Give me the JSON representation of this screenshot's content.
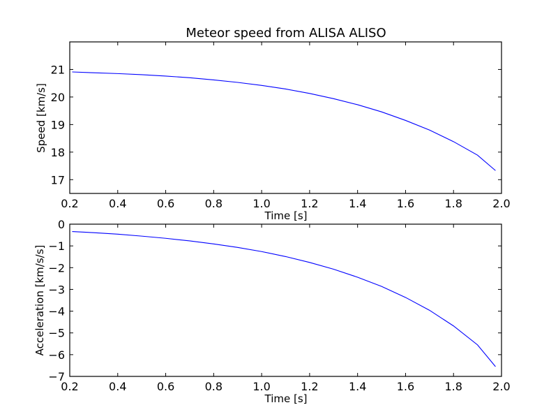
{
  "figure_title": "Meteor speed from  ALISA ALISO",
  "chart_data": [
    {
      "type": "line",
      "title": "Meteor speed from  ALISA ALISO",
      "xlabel": "Time [s]",
      "ylabel": "Speed [km/s]",
      "xlim": [
        0.2,
        2.0
      ],
      "ylim": [
        16.5,
        22.0
      ],
      "xticks": [
        "0.2",
        "0.4",
        "0.6",
        "0.8",
        "1.0",
        "1.2",
        "1.4",
        "1.6",
        "1.8",
        "2.0"
      ],
      "yticks": [
        "17",
        "18",
        "19",
        "20",
        "21"
      ],
      "grid": false,
      "line_color": "#0000ff",
      "series": [
        {
          "x": [
            0.21,
            0.3,
            0.4,
            0.5,
            0.6,
            0.7,
            0.8,
            0.9,
            1.0,
            1.1,
            1.2,
            1.3,
            1.4,
            1.5,
            1.6,
            1.7,
            1.8,
            1.9,
            1.975
          ],
          "y": [
            20.91,
            20.88,
            20.85,
            20.81,
            20.76,
            20.7,
            20.62,
            20.53,
            20.42,
            20.29,
            20.13,
            19.94,
            19.72,
            19.46,
            19.15,
            18.8,
            18.38,
            17.89,
            17.33
          ]
        }
      ]
    },
    {
      "type": "line",
      "title": "",
      "xlabel": "Time [s]",
      "ylabel": "Acceleration [km/s/s]",
      "xlim": [
        0.2,
        2.0
      ],
      "ylim": [
        -7,
        0
      ],
      "xticks": [
        "0.2",
        "0.4",
        "0.6",
        "0.8",
        "1.0",
        "1.2",
        "1.4",
        "1.6",
        "1.8",
        "2.0"
      ],
      "yticks": [
        "0",
        "−1",
        "−2",
        "−3",
        "−4",
        "−5",
        "−6",
        "−7"
      ],
      "grid": false,
      "line_color": "#0000ff",
      "series": [
        {
          "x": [
            0.21,
            0.3,
            0.4,
            0.5,
            0.6,
            0.7,
            0.8,
            0.9,
            1.0,
            1.1,
            1.2,
            1.3,
            1.4,
            1.5,
            1.6,
            1.7,
            1.8,
            1.9,
            1.975
          ],
          "y": [
            -0.34,
            -0.39,
            -0.46,
            -0.55,
            -0.65,
            -0.77,
            -0.91,
            -1.07,
            -1.26,
            -1.49,
            -1.76,
            -2.07,
            -2.44,
            -2.86,
            -3.37,
            -3.96,
            -4.68,
            -5.55,
            -6.55
          ]
        }
      ]
    }
  ]
}
